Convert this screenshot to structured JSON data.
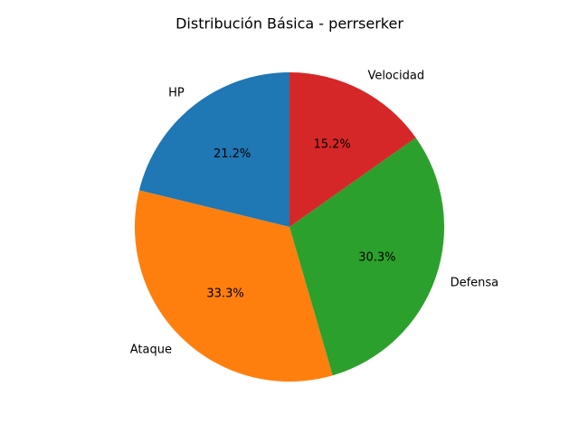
{
  "chart_data": {
    "type": "pie",
    "title": "Distribución Básica - perrserker",
    "categories": [
      "HP",
      "Ataque",
      "Defensa",
      "Velocidad"
    ],
    "values": [
      21.2,
      33.3,
      30.3,
      15.2
    ],
    "percent_labels": [
      "21.2%",
      "33.3%",
      "30.3%",
      "15.2%"
    ],
    "colors": [
      "#1f77b4",
      "#ff7f0e",
      "#2ca02c",
      "#d62728"
    ],
    "start_angle_deg": 90,
    "direction": "counterclockwise",
    "legend": "none"
  }
}
